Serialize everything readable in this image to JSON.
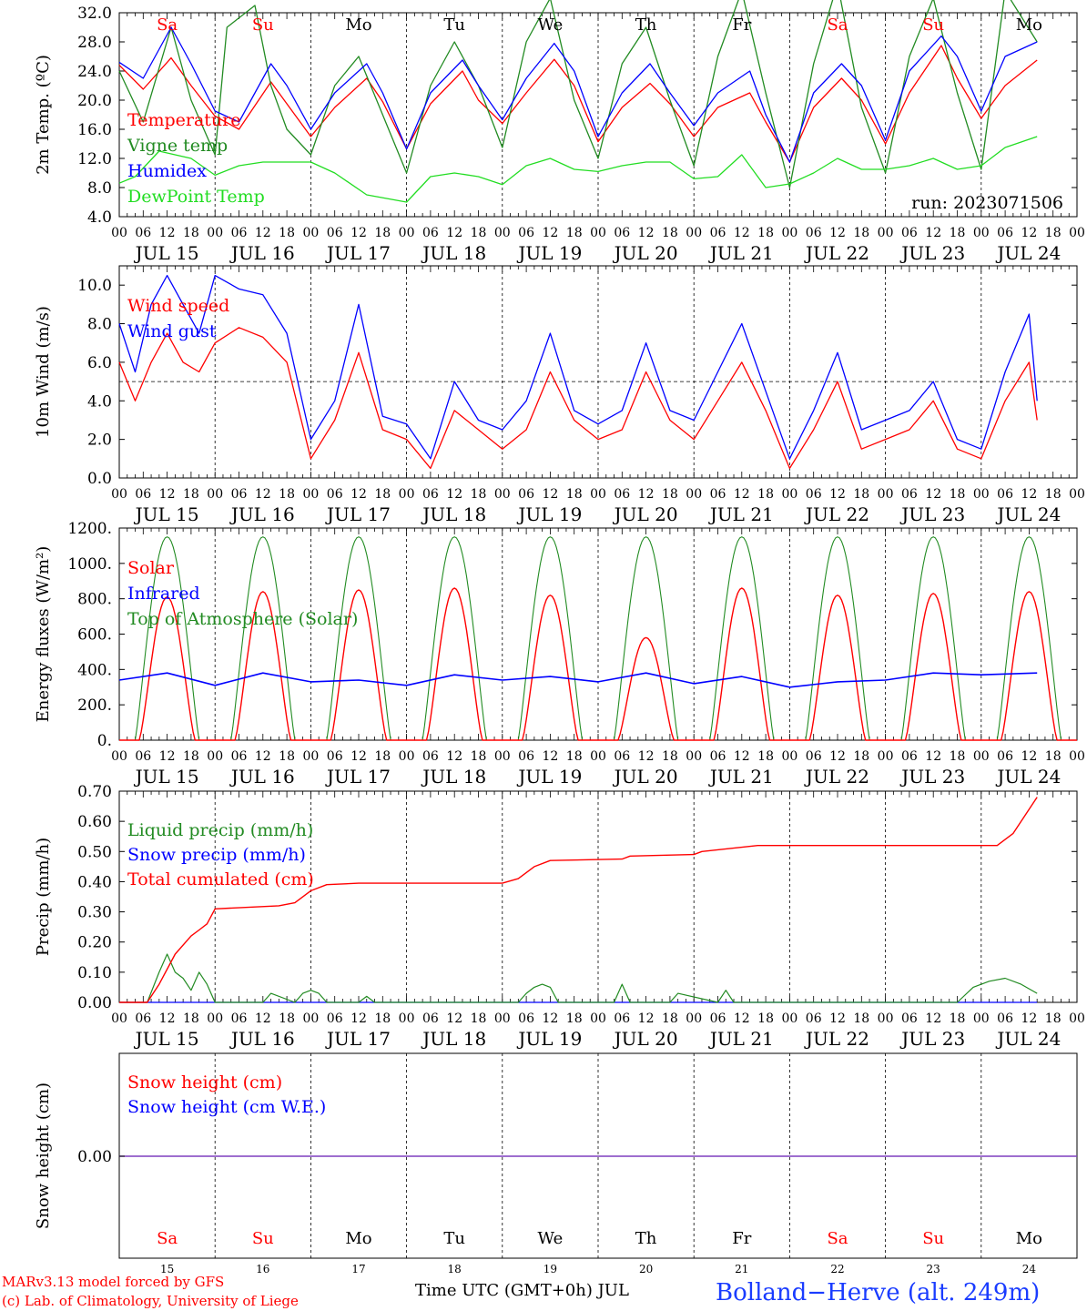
{
  "colors": {
    "red": "#ff0000",
    "green": "#228b22",
    "blue": "#0000ff",
    "light_green": "#22dd22",
    "purple": "#7f3fbf",
    "black": "#000000",
    "station_blue": "#1a3cff"
  },
  "footer": {
    "model_line": "MARv3.13 model forced by GFS",
    "copyright_line": "(c) Lab. of Climatology, University of Liege",
    "time_axis_label": "Time UTC (GMT+0h) JUL",
    "station": "Bolland−Herve (alt. 249m)"
  },
  "chart_data": [
    {
      "type": "line",
      "ylabel": "2m Temp. (ºC)",
      "ylim": [
        4,
        32
      ],
      "yticks": [
        "4.0",
        "8.0",
        "12.0",
        "16.0",
        "20.0",
        "24.0",
        "28.0",
        "32.0"
      ],
      "run_label": "run: 2023071506",
      "weekday_labels": [
        "Sa",
        "Su",
        "Mo",
        "Tu",
        "We",
        "Th",
        "Fr",
        "Sa",
        "Su",
        "Mo"
      ],
      "weekday_colors": [
        "red",
        "red",
        "black",
        "black",
        "black",
        "black",
        "black",
        "red",
        "red",
        "black"
      ],
      "hour_ticks": [
        "00",
        "06",
        "12",
        "18"
      ],
      "date_labels": [
        "JUL 15",
        "JUL 16",
        "JUL 17",
        "JUL 18",
        "JUL 19",
        "JUL 20",
        "JUL 21",
        "JUL 22",
        "JUL 23",
        "JUL 24"
      ],
      "x_unit": "hours since JUL 15 00 UTC",
      "series": [
        {
          "name": "Temperature",
          "color": "red",
          "x": [
            0,
            6,
            13,
            18,
            24,
            30,
            38,
            42,
            48,
            54,
            62,
            66,
            72,
            78,
            86,
            90,
            96,
            102,
            109,
            114,
            120,
            126,
            133,
            138,
            144,
            150,
            158,
            162,
            168,
            174,
            181,
            186,
            192,
            198,
            206,
            210,
            216,
            222,
            230
          ],
          "values": [
            24.8,
            21.5,
            25.8,
            22,
            17.8,
            16,
            22.5,
            19.5,
            15,
            19,
            23,
            19.8,
            13.3,
            19.5,
            24,
            20,
            16.8,
            21,
            25.6,
            22,
            14.3,
            19,
            22.3,
            19.5,
            15,
            19,
            21,
            17,
            11.5,
            19,
            23,
            20,
            14,
            21,
            27.5,
            23,
            17.5,
            22,
            25.5
          ]
        },
        {
          "name": "Vigne temp",
          "color": "green",
          "x": [
            0,
            6,
            13,
            18,
            24,
            27,
            34,
            38,
            42,
            48,
            54,
            60,
            66,
            72,
            78,
            84,
            90,
            96,
            102,
            108,
            114,
            120,
            126,
            132,
            138,
            144,
            150,
            156,
            162,
            168,
            174,
            180,
            186,
            192,
            198,
            204,
            210,
            216,
            222,
            230
          ],
          "values": [
            24,
            17,
            30,
            20,
            12.5,
            30,
            33,
            22,
            16,
            12.5,
            22,
            26,
            18,
            10,
            22,
            28,
            22,
            13.5,
            28,
            34,
            20,
            12,
            25,
            30,
            20,
            11,
            26,
            35,
            21,
            8,
            25,
            36,
            19,
            10,
            26,
            34,
            21,
            10.5,
            35,
            28
          ]
        },
        {
          "name": "Humidex",
          "color": "blue",
          "x": [
            0,
            6,
            13,
            18,
            24,
            30,
            38,
            42,
            48,
            54,
            62,
            66,
            72,
            78,
            86,
            90,
            96,
            102,
            109,
            114,
            120,
            126,
            133,
            138,
            144,
            150,
            158,
            162,
            168,
            174,
            181,
            186,
            192,
            198,
            206,
            210,
            216,
            222,
            230
          ],
          "values": [
            25.2,
            23,
            30,
            25,
            18.5,
            17,
            25,
            22,
            16,
            21,
            25,
            21,
            13.3,
            21,
            25.5,
            22,
            17.3,
            23,
            27.8,
            24,
            15,
            21,
            25,
            21,
            16.5,
            21,
            24,
            18,
            11.5,
            21,
            25,
            22,
            14.5,
            24,
            28.8,
            26,
            18.5,
            26,
            28
          ]
        },
        {
          "name": "DewPoint Temp",
          "color": "light_green",
          "x": [
            0,
            4,
            10,
            18,
            24,
            30,
            36,
            48,
            54,
            62,
            72,
            78,
            84,
            90,
            96,
            102,
            108,
            114,
            120,
            126,
            132,
            138,
            144,
            150,
            156,
            162,
            168,
            174,
            180,
            186,
            192,
            198,
            204,
            210,
            216,
            222,
            230
          ],
          "values": [
            8.6,
            9.5,
            13,
            12,
            9.7,
            11,
            11.5,
            11.5,
            10,
            7,
            6,
            9.5,
            10,
            9.5,
            8.4,
            11,
            12,
            10.5,
            10.2,
            11,
            11.5,
            11.5,
            9.2,
            9.5,
            12.5,
            8,
            8.5,
            10,
            12,
            10.5,
            10.5,
            11,
            12,
            10.5,
            11,
            13.5,
            15
          ]
        }
      ]
    },
    {
      "type": "line",
      "ylabel": "10m Wind (m/s)",
      "ylim": [
        0,
        11
      ],
      "yticks": [
        "0.0",
        "2.0",
        "4.0",
        "6.0",
        "8.0",
        "10.0"
      ],
      "reference_line": 5,
      "hour_ticks": [
        "00",
        "06",
        "12",
        "18"
      ],
      "date_labels": [
        "JUL 15",
        "JUL 16",
        "JUL 17",
        "JUL 18",
        "JUL 19",
        "JUL 20",
        "JUL 21",
        "JUL 22",
        "JUL 23",
        "JUL 24"
      ],
      "series": [
        {
          "name": "Wind speed",
          "color": "red",
          "x": [
            0,
            4,
            8,
            12,
            16,
            20,
            24,
            30,
            36,
            42,
            48,
            54,
            60,
            66,
            72,
            78,
            84,
            90,
            96,
            102,
            108,
            114,
            120,
            126,
            132,
            138,
            144,
            150,
            156,
            162,
            168,
            174,
            180,
            186,
            192,
            198,
            204,
            210,
            216,
            222,
            228,
            230
          ],
          "values": [
            6,
            4,
            6,
            7.5,
            6,
            5.5,
            7,
            7.8,
            7.3,
            6,
            1,
            3,
            6.5,
            2.5,
            2,
            0.5,
            3.5,
            2.5,
            1.5,
            2.5,
            5.5,
            3,
            2,
            2.5,
            5.5,
            3,
            2,
            4,
            6,
            3.5,
            0.5,
            2.5,
            5,
            1.5,
            2,
            2.5,
            4,
            1.5,
            1,
            4,
            6,
            3
          ]
        },
        {
          "name": "Wind gust",
          "color": "blue",
          "x": [
            0,
            4,
            8,
            12,
            16,
            20,
            24,
            30,
            36,
            42,
            48,
            54,
            60,
            66,
            72,
            78,
            84,
            90,
            96,
            102,
            108,
            114,
            120,
            126,
            132,
            138,
            144,
            150,
            156,
            162,
            168,
            174,
            180,
            186,
            192,
            198,
            204,
            210,
            216,
            222,
            228,
            230
          ],
          "values": [
            8,
            5.5,
            9,
            10.5,
            9,
            7.5,
            10.5,
            9.8,
            9.5,
            7.5,
            2,
            4,
            9,
            3.2,
            2.8,
            1,
            5,
            3,
            2.5,
            4,
            7.5,
            3.5,
            2.8,
            3.5,
            7,
            3.5,
            3,
            5.5,
            8,
            4.5,
            1,
            3.5,
            6.5,
            2.5,
            3,
            3.5,
            5,
            2,
            1.5,
            5.5,
            8.5,
            4
          ]
        }
      ]
    },
    {
      "type": "line",
      "ylabel": "Energy fluxes (W/m²)",
      "ylim": [
        0,
        1200
      ],
      "yticks": [
        "0.",
        "200.",
        "400.",
        "600.",
        "800.",
        "1000.",
        "1200."
      ],
      "hour_ticks": [
        "00",
        "06",
        "12",
        "18"
      ],
      "date_labels": [
        "JUL 15",
        "JUL 16",
        "JUL 17",
        "JUL 18",
        "JUL 19",
        "JUL 20",
        "JUL 21",
        "JUL 22",
        "JUL 23",
        "JUL 24"
      ],
      "daily_solar_peak": [
        810,
        840,
        850,
        860,
        820,
        580,
        860,
        820,
        830,
        840
      ],
      "toa_peak": 1150,
      "series": [
        {
          "name": "Solar",
          "color": "red"
        },
        {
          "name": "Infrared",
          "color": "blue",
          "x": [
            0,
            12,
            24,
            36,
            48,
            60,
            72,
            84,
            96,
            108,
            120,
            132,
            144,
            156,
            168,
            180,
            192,
            204,
            216,
            230
          ],
          "values": [
            340,
            380,
            310,
            380,
            330,
            340,
            310,
            370,
            340,
            360,
            330,
            380,
            320,
            360,
            300,
            330,
            340,
            380,
            370,
            380
          ]
        },
        {
          "name": "Top of Atmosphere (Solar)",
          "color": "green"
        }
      ]
    },
    {
      "type": "line",
      "ylabel": "Precip (mm/h)",
      "ylim": [
        0,
        0.7
      ],
      "yticks": [
        "0.00",
        "0.10",
        "0.20",
        "0.30",
        "0.40",
        "0.50",
        "0.60",
        "0.70"
      ],
      "hour_ticks": [
        "00",
        "06",
        "12",
        "18"
      ],
      "date_labels": [
        "JUL 15",
        "JUL 16",
        "JUL 17",
        "JUL 18",
        "JUL 19",
        "JUL 20",
        "JUL 21",
        "JUL 22",
        "JUL 23",
        "JUL 24"
      ],
      "series": [
        {
          "name": "Liquid precip (mm/h)",
          "color": "green",
          "x": [
            0,
            7,
            10,
            12,
            14,
            16,
            18,
            20,
            22,
            24,
            26,
            36,
            38,
            44,
            46,
            48,
            50,
            52,
            60,
            62,
            64,
            100,
            102,
            104,
            106,
            108,
            110,
            124,
            126,
            128,
            138,
            140,
            150,
            152,
            154,
            200,
            210,
            214,
            218,
            222,
            226,
            230
          ],
          "values": [
            0,
            0,
            0.1,
            0.16,
            0.1,
            0.08,
            0.04,
            0.1,
            0.06,
            0,
            0,
            0,
            0.03,
            0,
            0.03,
            0.04,
            0.03,
            0,
            0,
            0.02,
            0,
            0,
            0.03,
            0.05,
            0.06,
            0.05,
            0,
            0,
            0.06,
            0,
            0,
            0.03,
            0,
            0.04,
            0,
            0,
            0,
            0.05,
            0.07,
            0.08,
            0.06,
            0.03
          ]
        },
        {
          "name": "Snow precip (mm/h)",
          "color": "blue",
          "x": [
            0,
            230
          ],
          "values": [
            0,
            0
          ]
        },
        {
          "name": "Total cumulated (cm)",
          "color": "red",
          "x": [
            0,
            7,
            10,
            14,
            18,
            20,
            22,
            24,
            40,
            44,
            48,
            52,
            60,
            96,
            100,
            104,
            108,
            126,
            128,
            144,
            146,
            160,
            220,
            224,
            230
          ],
          "values": [
            0,
            0,
            0.06,
            0.16,
            0.22,
            0.24,
            0.26,
            0.31,
            0.32,
            0.33,
            0.37,
            0.39,
            0.395,
            0.395,
            0.41,
            0.45,
            0.47,
            0.475,
            0.485,
            0.49,
            0.5,
            0.52,
            0.52,
            0.56,
            0.68
          ]
        }
      ]
    },
    {
      "type": "line",
      "ylabel": "Snow height (cm)",
      "ytick_value": 0,
      "ytick_label": "0.00",
      "weekday_labels": [
        "Sa",
        "Su",
        "Mo",
        "Tu",
        "We",
        "Th",
        "Fr",
        "Sa",
        "Su",
        "Mo"
      ],
      "weekday_colors": [
        "red",
        "red",
        "black",
        "black",
        "black",
        "black",
        "black",
        "red",
        "red",
        "black"
      ],
      "day_numbers": [
        "15",
        "16",
        "17",
        "18",
        "19",
        "20",
        "21",
        "22",
        "23",
        "24"
      ],
      "series": [
        {
          "name": "Snow height (cm)",
          "color": "red",
          "x": [
            0,
            240
          ],
          "values": [
            0,
            0
          ]
        },
        {
          "name": "Snow height (cm W.E.)",
          "color": "blue",
          "x": [
            0,
            240
          ],
          "values": [
            0,
            0
          ]
        }
      ]
    }
  ]
}
